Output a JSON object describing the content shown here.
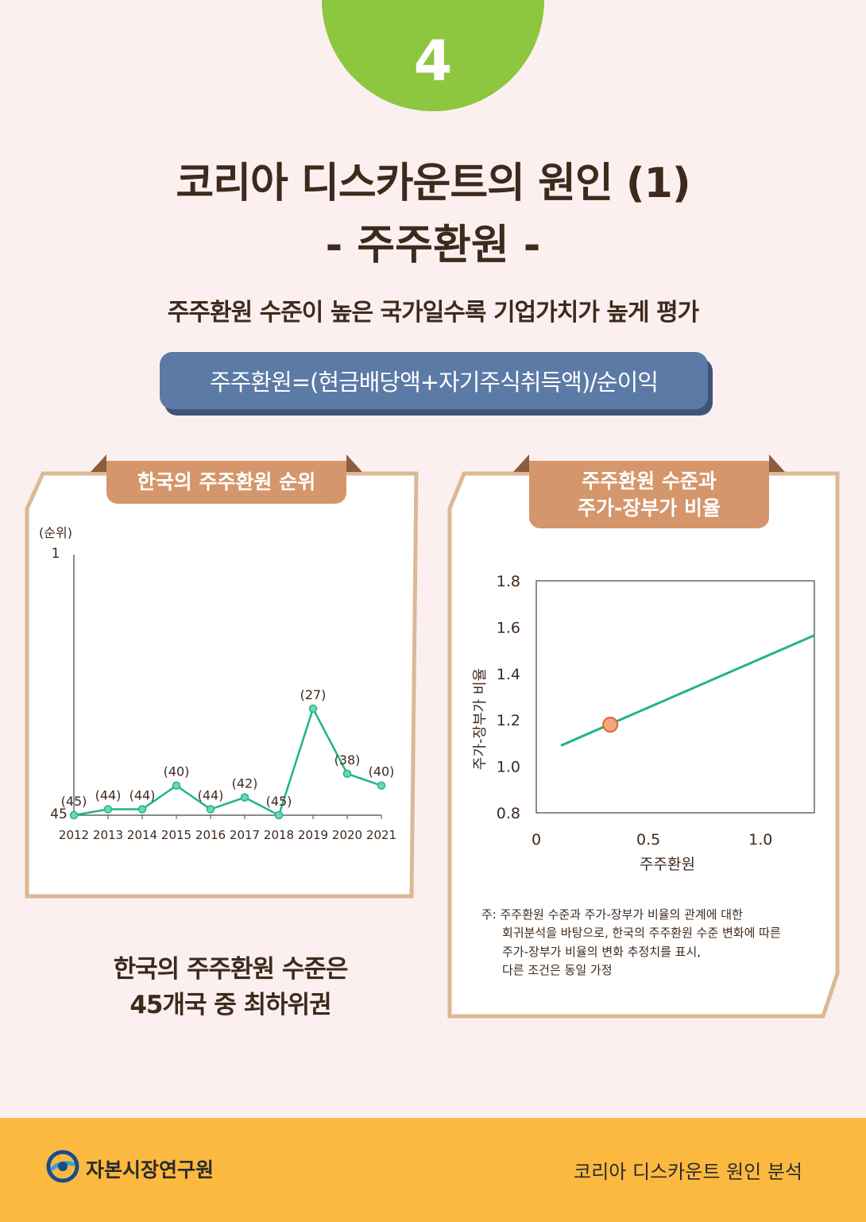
{
  "badge": "4",
  "title_line1": "코리아 디스카운트의 원인 (1)",
  "title_line2": "- 주주환원 -",
  "subtitle": "주주환원 수준이 높은 국가일수록 기업가치가 높게 평가",
  "formula": "주주환원=(현금배당액+자기주식취득액)/순이익",
  "left_panel": {
    "tab": "한국의 주주환원 순위",
    "conclusion_line1": "한국의 주주환원 수준은",
    "conclusion_line2": "45개국 중 최하위권"
  },
  "right_panel": {
    "tab_line1": "주주환원 수준과",
    "tab_line2": "주가-장부가 비율",
    "note_line1": "주: 주주환원 수준과 주가-장부가 비율의 관계에 대한",
    "note_line2": "회귀분석을 바탕으로, 한국의 주주환원 수준 변화에 따른",
    "note_line3": "주가-장부가 비율의 변화 추정치를 표시,",
    "note_line4": "다른 조건은 동일 가정"
  },
  "footer": {
    "org": "자본시장연구원",
    "series": "코리아 디스카운트 원인 분석"
  },
  "colors": {
    "accent_green": "#8dc63f",
    "line": "#1fb48a",
    "tab": "#d4966a",
    "formula": "#5b7aa6",
    "footer": "#fbb940"
  },
  "chart_data": [
    {
      "type": "line",
      "title": "한국의 주주환원 순위",
      "ylabel": "(순위)",
      "y_reversed": true,
      "ylim": [
        1,
        45
      ],
      "ytick_labels": [
        "1",
        "45"
      ],
      "categories": [
        "2012",
        "2013",
        "2014",
        "2015",
        "2016",
        "2017",
        "2018",
        "2019",
        "2020",
        "2021"
      ],
      "values": [
        45,
        44,
        44,
        40,
        44,
        42,
        45,
        27,
        38,
        40
      ],
      "data_labels": [
        "(45)",
        "(44)",
        "(44)",
        "(40)",
        "(44)",
        "(42)",
        "(45)",
        "(27)",
        "(38)",
        "(40)"
      ]
    },
    {
      "type": "line",
      "title": "주주환원 수준과 주가-장부가 비율",
      "xlabel": "주주환원",
      "ylabel": "주가-장부가 비율",
      "xlim": [
        0,
        1.24
      ],
      "ylim": [
        0.8,
        1.8
      ],
      "xticks": [
        "0",
        "0.5",
        "1.0"
      ],
      "yticks": [
        "0.8",
        "1.0",
        "1.2",
        "1.4",
        "1.6",
        "1.8"
      ],
      "x": [
        0.11,
        1.24
      ],
      "y": [
        1.09,
        1.565
      ],
      "highlight_point": {
        "x": 0.33,
        "y": 1.18
      }
    }
  ]
}
